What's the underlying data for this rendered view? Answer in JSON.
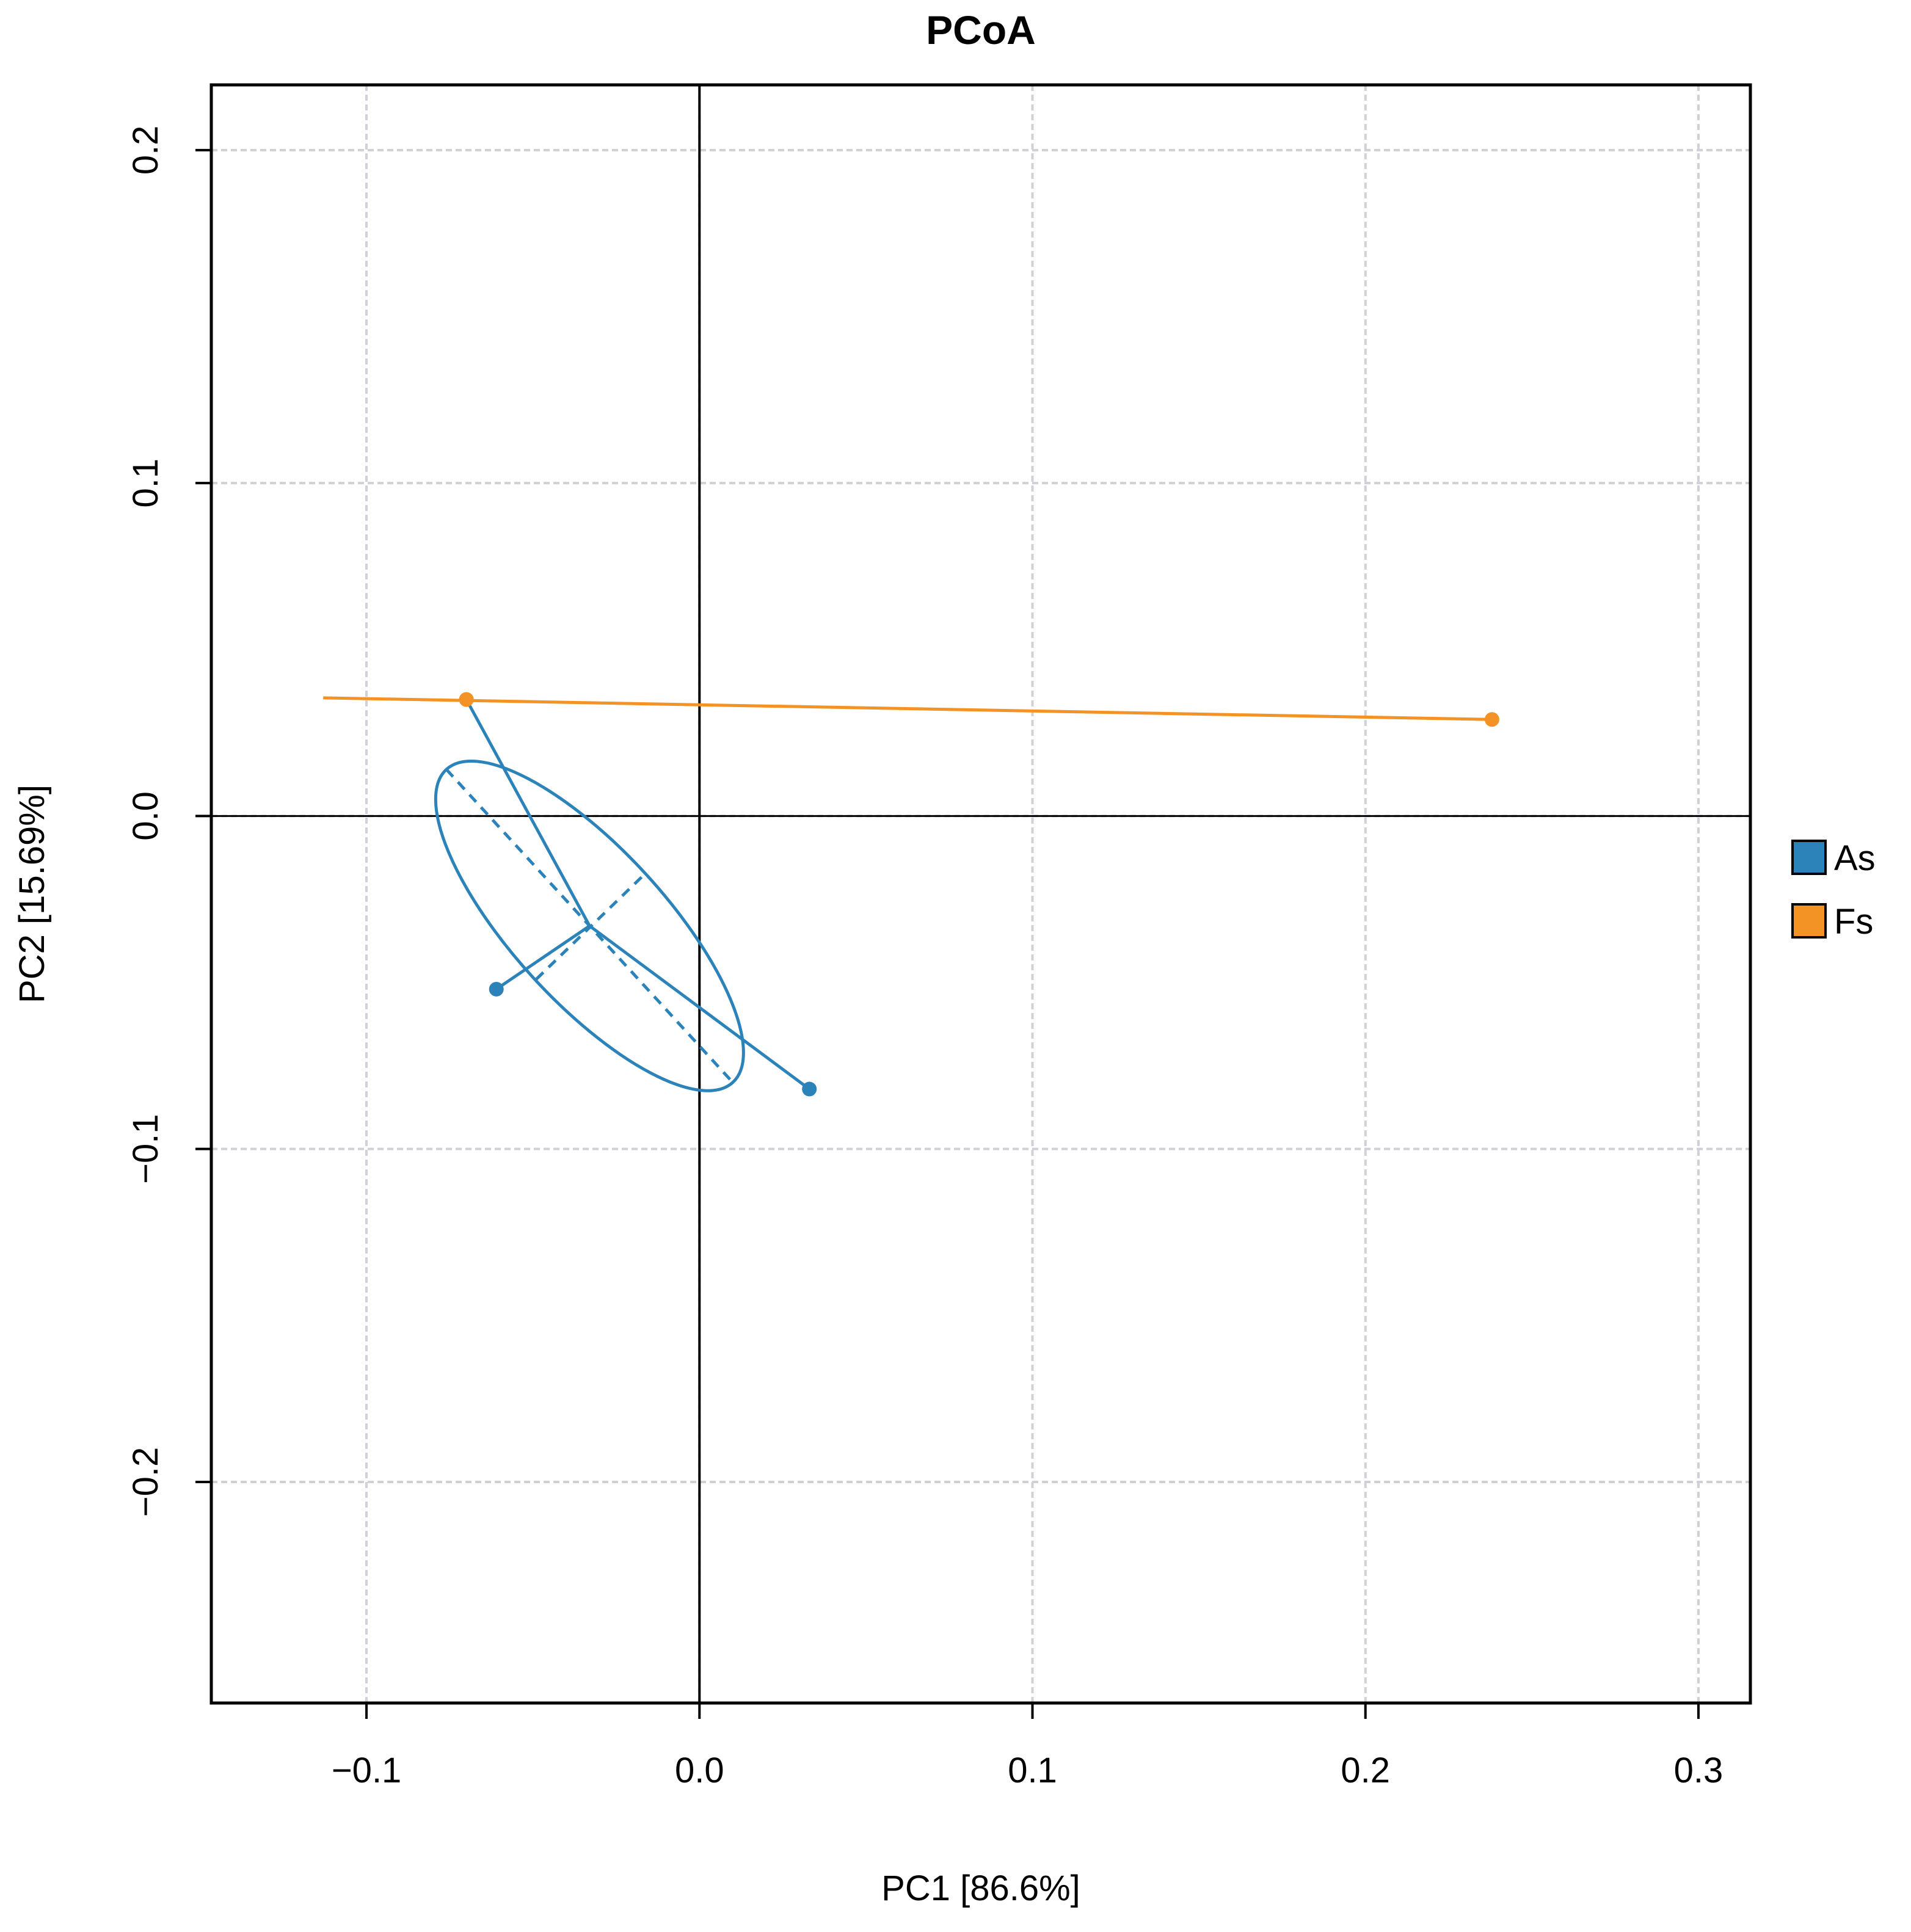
{
  "chart_data": {
    "type": "scatter",
    "title": "PCoA",
    "xlabel": "PC1  [86.6%]",
    "ylabel": "PC2  [15.69%]",
    "xlim": [
      -0.1466,
      0.3156
    ],
    "ylim": [
      -0.2664,
      0.2196
    ],
    "x_ticks": [
      -0.1,
      0.0,
      0.1,
      0.2,
      0.3
    ],
    "x_tick_labels": [
      "−0.1",
      "0.0",
      "0.1",
      "0.2",
      "0.3"
    ],
    "y_ticks": [
      -0.2,
      -0.1,
      0.0,
      0.1,
      0.2
    ],
    "y_tick_labels": [
      "−0.2",
      "−0.1",
      "0.0",
      "0.1",
      "0.2"
    ],
    "grid": true,
    "reference_lines": {
      "x": 0.0,
      "y": 0.0
    },
    "legend_position": "right",
    "series": [
      {
        "name": "As",
        "color": "#2b83ba",
        "points": [
          {
            "x": -0.07,
            "y": 0.035
          },
          {
            "x": -0.061,
            "y": -0.052
          },
          {
            "x": 0.033,
            "y": -0.082
          }
        ],
        "centroid": {
          "x": -0.033,
          "y": -0.033
        },
        "ellipse": {
          "center": {
            "x": -0.033,
            "y": -0.033
          },
          "axis_major": [
            {
              "x": -0.076,
              "y": 0.014
            },
            {
              "x": 0.01,
              "y": -0.08
            }
          ],
          "axis_minor": [
            {
              "x": -0.049,
              "y": -0.049
            },
            {
              "x": -0.016,
              "y": -0.017
            }
          ]
        }
      },
      {
        "name": "Fs",
        "color": "#f39325",
        "points": [
          {
            "x": -0.07,
            "y": 0.035
          },
          {
            "x": 0.238,
            "y": 0.029
          }
        ],
        "segment": [
          {
            "x": -0.113,
            "y": 0.0355
          },
          {
            "x": 0.238,
            "y": 0.029
          }
        ]
      }
    ]
  }
}
